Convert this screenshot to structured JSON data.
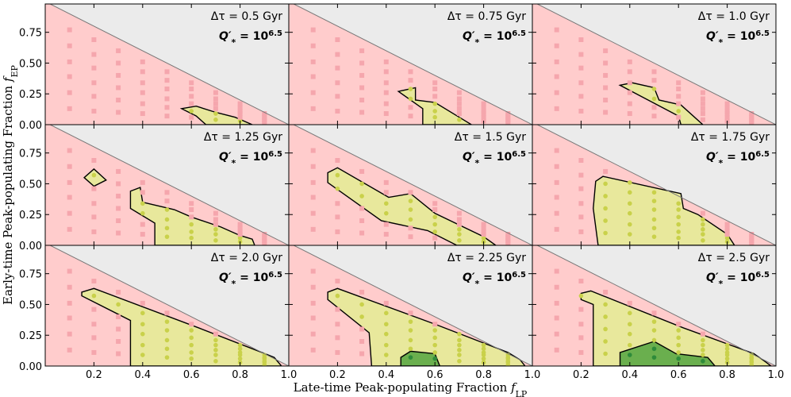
{
  "xlabel": {
    "text": "Late-time Peak-populating Fraction ",
    "symbol": "f",
    "sub": "LP"
  },
  "ylabel": {
    "text": "Early-time Peak-populating Fraction ",
    "symbol": "f",
    "sub": "EP"
  },
  "q_label": {
    "symbol": "Q′",
    "sub": "*",
    "base": " = 10",
    "exp": "6.5"
  },
  "axes": {
    "xlim": [
      0,
      1
    ],
    "ylim": [
      0,
      0.98
    ],
    "xticks": [
      0.2,
      0.4,
      0.6,
      0.8,
      {
        "value": 1,
        "label": "1.0"
      }
    ],
    "yticks": [
      {
        "value": 0,
        "label": "0.00"
      },
      0.25,
      {
        "value": 0.5,
        "label": "0.50"
      },
      0.75
    ]
  },
  "colors": {
    "allowed": "#ffcccc",
    "excluded": "#ebebeb",
    "sample": "#f5a6ad"
  },
  "samples": {
    "x": [
      0.1,
      0.2,
      0.3,
      0.4,
      0.5,
      0.6,
      0.7,
      0.8,
      0.9
    ],
    "y": [
      [
        0.13,
        0.26,
        0.39,
        0.51,
        0.64,
        0.77
      ],
      [
        0.11,
        0.23,
        0.34,
        0.46,
        0.57,
        0.69
      ],
      [
        0.1,
        0.2,
        0.3,
        0.4,
        0.5,
        0.6
      ],
      [
        0.09,
        0.17,
        0.26,
        0.34,
        0.43,
        0.51
      ],
      [
        0.07,
        0.14,
        0.21,
        0.29,
        0.36,
        0.43
      ],
      [
        0.06,
        0.11,
        0.17,
        0.23,
        0.29,
        0.34
      ],
      [
        0.04,
        0.09,
        0.13,
        0.17,
        0.21,
        0.26
      ],
      [
        0.03,
        0.06,
        0.09,
        0.11,
        0.14,
        0.17
      ],
      [
        0.01,
        0.03,
        0.04,
        0.06,
        0.07,
        0.09
      ]
    ]
  },
  "chart_data": [
    {
      "type": "contour",
      "title": "Δτ = 0.5 Gyr",
      "regions": [
        {
          "color": "#e8e89c",
          "dot_color": "#c9d14a",
          "x": [
            0.56,
            0.62,
            0.7,
            0.78,
            0.85,
            0.66,
            0.62
          ],
          "y": [
            0.13,
            0.15,
            0.1,
            0.06,
            0,
            0,
            0.07
          ]
        }
      ]
    },
    {
      "type": "contour",
      "title": "Δτ = 0.75 Gyr",
      "regions": [
        {
          "color": "#e8e89c",
          "dot_color": "#c9d14a",
          "x": [
            0.45,
            0.52,
            0.52,
            0.6,
            0.7,
            0.75,
            0.55,
            0.55
          ],
          "y": [
            0.27,
            0.3,
            0.2,
            0.18,
            0.06,
            0,
            0,
            0.13
          ]
        }
      ]
    },
    {
      "type": "contour",
      "title": "Δτ = 1.0 Gyr",
      "regions": [
        {
          "color": "#e8e89c",
          "dot_color": "#c9d14a",
          "x": [
            0.36,
            0.41,
            0.5,
            0.52,
            0.61,
            0.7,
            0.61,
            0.6
          ],
          "y": [
            0.32,
            0.34,
            0.3,
            0.2,
            0.16,
            0,
            0,
            0.07
          ]
        }
      ]
    },
    {
      "type": "contour",
      "title": "Δτ = 1.25 Gyr",
      "regions": [
        {
          "color": "#e8e89c",
          "dot_color": "#c9d14a",
          "x": [
            0.16,
            0.2,
            0.25,
            0.2
          ],
          "y": [
            0.55,
            0.62,
            0.53,
            0.48
          ]
        },
        {
          "color": "#e8e89c",
          "dot_color": "#c9d14a",
          "x": [
            0.35,
            0.39,
            0.4,
            0.53,
            0.6,
            0.72,
            0.8,
            0.85,
            0.86,
            0.45,
            0.45,
            0.35
          ],
          "y": [
            0.44,
            0.47,
            0.35,
            0.29,
            0.23,
            0.15,
            0.08,
            0.05,
            0,
            0,
            0.18,
            0.3
          ]
        }
      ]
    },
    {
      "type": "contour",
      "title": "Δτ = 1.5 Gyr",
      "regions": [
        {
          "color": "#e8e89c",
          "dot_color": "#c9d14a",
          "x": [
            0.16,
            0.2,
            0.41,
            0.5,
            0.6,
            0.8,
            0.85,
            0.69,
            0.57,
            0.38,
            0.16
          ],
          "y": [
            0.59,
            0.63,
            0.39,
            0.42,
            0.26,
            0.07,
            0,
            0,
            0.12,
            0.2,
            0.51
          ]
        }
      ]
    },
    {
      "type": "contour",
      "title": "Δτ = 1.75 Gyr",
      "regions": [
        {
          "color": "#e8e89c",
          "dot_color": "#c9d14a",
          "x": [
            0.26,
            0.29,
            0.61,
            0.62,
            0.68,
            0.8,
            0.83,
            0.27,
            0.25
          ],
          "y": [
            0.52,
            0.56,
            0.42,
            0.3,
            0.25,
            0.09,
            0,
            0,
            0.3
          ]
        }
      ]
    },
    {
      "type": "contour",
      "title": "Δτ = 2.0 Gyr",
      "regions": [
        {
          "color": "#e8e89c",
          "dot_color": "#c9d14a",
          "x": [
            0.15,
            0.2,
            0.63,
            0.89,
            0.94,
            0.97,
            0.35,
            0.35,
            0.15
          ],
          "y": [
            0.6,
            0.63,
            0.31,
            0.11,
            0.07,
            0,
            0,
            0.37,
            0.57
          ]
        }
      ]
    },
    {
      "type": "contour",
      "title": "Δτ = 2.25 Gyr",
      "regions": [
        {
          "color": "#e8e89c",
          "dot_color": "#c9d14a",
          "x": [
            0.16,
            0.2,
            0.6,
            0.9,
            0.95,
            0.97,
            0.34,
            0.33,
            0.16
          ],
          "y": [
            0.6,
            0.63,
            0.34,
            0.11,
            0.05,
            0,
            0,
            0.27,
            0.54
          ]
        },
        {
          "color": "#6aaf4e",
          "dot_color": "#2e8b3a",
          "x": [
            0.46,
            0.5,
            0.6,
            0.62,
            0.46
          ],
          "y": [
            0.07,
            0.12,
            0.1,
            0,
            0
          ]
        }
      ]
    },
    {
      "type": "contour",
      "title": "Δτ = 2.5 Gyr",
      "regions": [
        {
          "color": "#e8e89c",
          "dot_color": "#c9d14a",
          "x": [
            0.2,
            0.24,
            0.62,
            0.91,
            0.96,
            0.98,
            0.25,
            0.25,
            0.2
          ],
          "y": [
            0.59,
            0.61,
            0.31,
            0.1,
            0.03,
            0,
            0,
            0.5,
            0.54
          ]
        },
        {
          "color": "#6aaf4e",
          "dot_color": "#2e8b3a",
          "x": [
            0.36,
            0.5,
            0.59,
            0.72,
            0.75,
            0.36
          ],
          "y": [
            0.11,
            0.2,
            0.1,
            0.07,
            0,
            0
          ]
        }
      ]
    }
  ]
}
